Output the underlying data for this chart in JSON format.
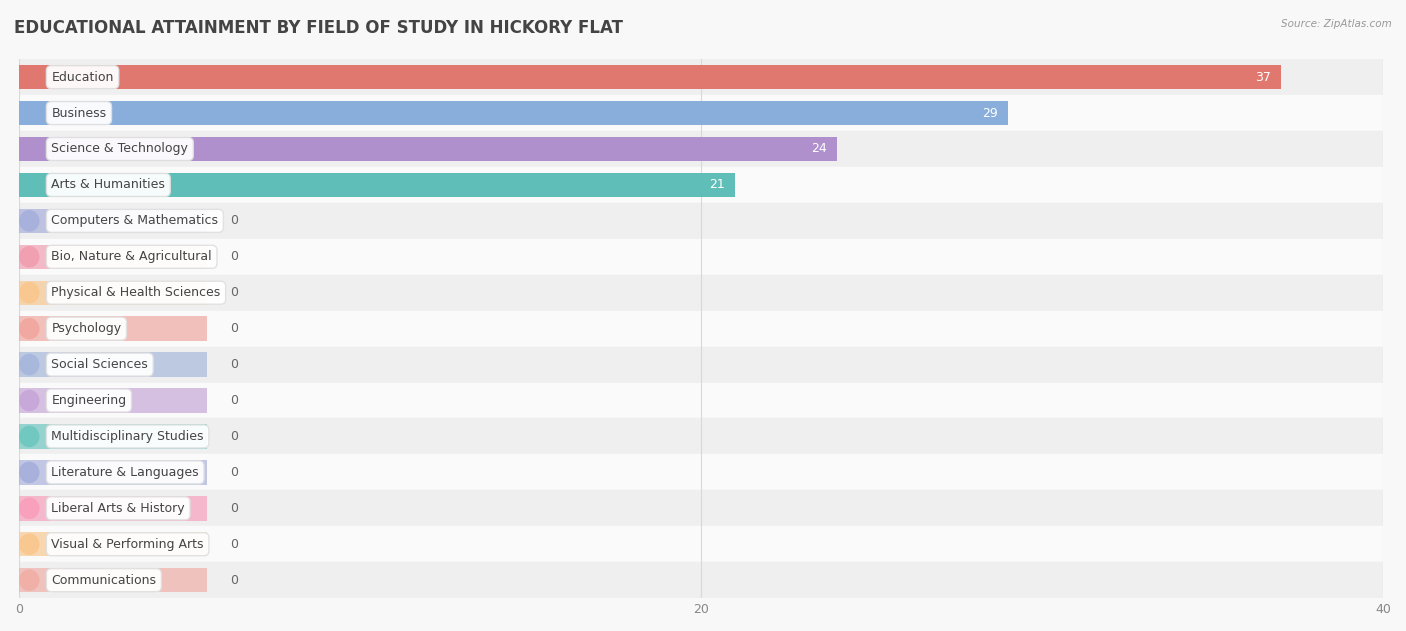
{
  "title": "EDUCATIONAL ATTAINMENT BY FIELD OF STUDY IN HICKORY FLAT",
  "source": "Source: ZipAtlas.com",
  "categories": [
    "Education",
    "Business",
    "Science & Technology",
    "Arts & Humanities",
    "Computers & Mathematics",
    "Bio, Nature & Agricultural",
    "Physical & Health Sciences",
    "Psychology",
    "Social Sciences",
    "Engineering",
    "Multidisciplinary Studies",
    "Literature & Languages",
    "Liberal Arts & History",
    "Visual & Performing Arts",
    "Communications"
  ],
  "values": [
    37,
    29,
    24,
    21,
    0,
    0,
    0,
    0,
    0,
    0,
    0,
    0,
    0,
    0,
    0
  ],
  "bar_colors": [
    "#E07870",
    "#8AAEDC",
    "#B090CC",
    "#60BEB8",
    "#A8B0DC",
    "#F0A0B0",
    "#F8C890",
    "#F0A8A0",
    "#A8B8DC",
    "#C8A8D8",
    "#70C8C0",
    "#A8B0DC",
    "#F8A0BC",
    "#F8C890",
    "#F0B0A8"
  ],
  "label_dot_colors": [
    "#E07870",
    "#8AAEDC",
    "#B090CC",
    "#60BEB8",
    "#A8B0DC",
    "#F0A0B0",
    "#F8C890",
    "#F0A8A0",
    "#A8B8DC",
    "#C8A8D8",
    "#70C8C0",
    "#A8B0DC",
    "#F8A0BC",
    "#F8C890",
    "#F0B0A8"
  ],
  "xlim": [
    0,
    40
  ],
  "xticks": [
    0,
    20,
    40
  ],
  "background_color": "#f8f8f8",
  "title_fontsize": 12,
  "label_fontsize": 9,
  "value_fontsize": 9
}
